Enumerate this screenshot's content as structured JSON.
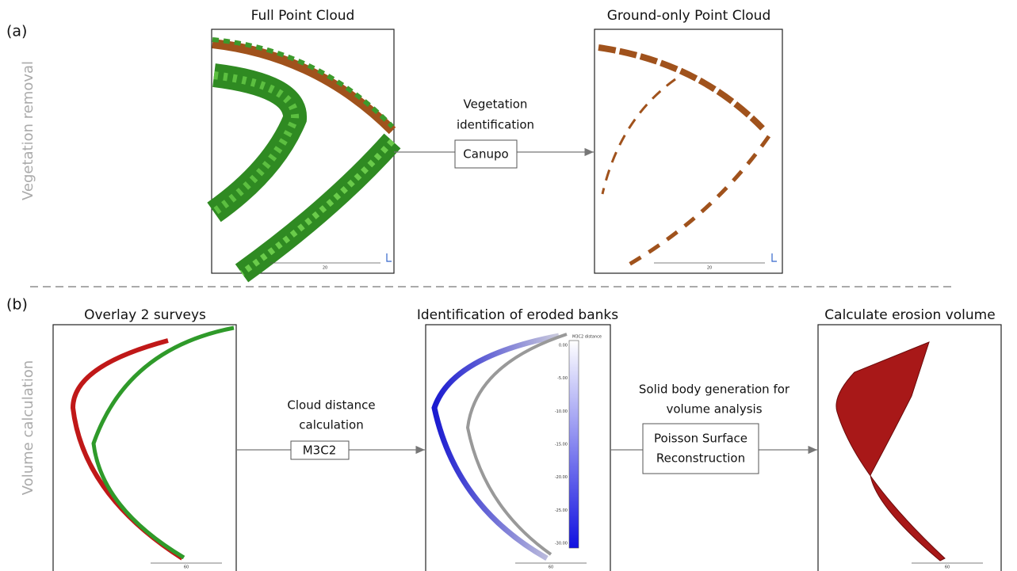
{
  "panel_a": {
    "label": "(a)",
    "side_label": "Vegetation removal",
    "input_title": "Full Point Cloud",
    "output_title": "Ground-only Point Cloud",
    "process_text": [
      "Vegetation",
      "identification"
    ],
    "method": "Canupo",
    "scale_labels": [
      "20",
      "20"
    ]
  },
  "panel_b": {
    "label": "(b)",
    "side_label": "Volume calculation",
    "input_title": "Overlay 2 surveys",
    "middle_title": "Identification of eroded banks",
    "output_title": "Calculate erosion volume",
    "process_1_text": [
      "Cloud distance",
      "calculation"
    ],
    "method_1": "M3C2",
    "process_2_text": [
      "Solid body generation for",
      "volume analysis"
    ],
    "method_2": [
      "Poisson Surface",
      "Reconstruction"
    ],
    "colorbar_title": "M3C2 distance",
    "colorbar_labels": [
      "0.00",
      "-5.00",
      "-10.00",
      "-15.00",
      "-20.00",
      "-25.00",
      "-30.00"
    ],
    "scale_labels": [
      "60",
      "60",
      "60"
    ]
  }
}
